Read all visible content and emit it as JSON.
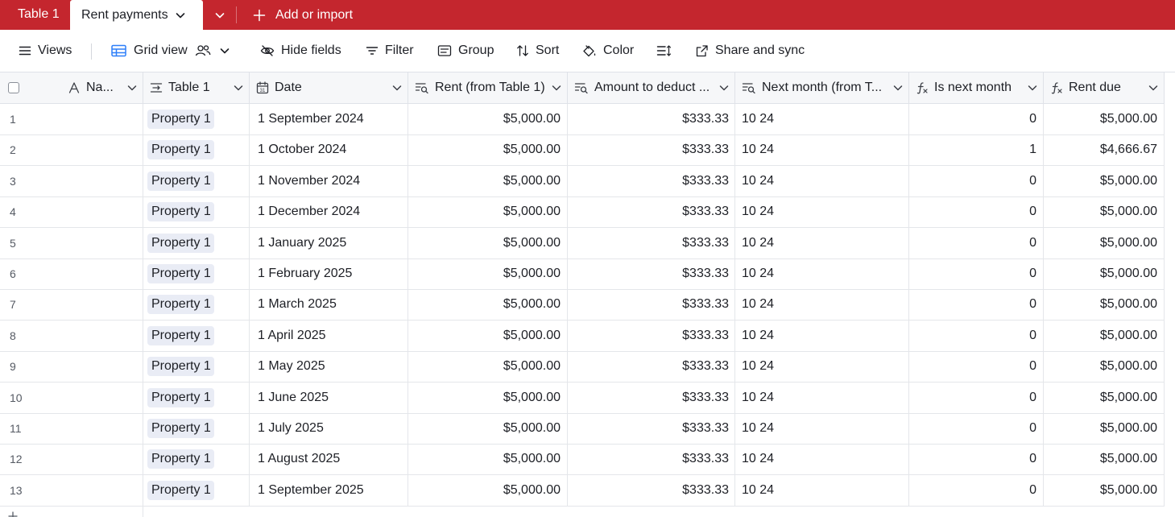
{
  "tabbar": {
    "tab_table1": "Table 1",
    "tab_active": "Rent payments",
    "add_import": "Add or import"
  },
  "toolbar": {
    "views": "Views",
    "grid_view": "Grid view",
    "hide_fields": "Hide fields",
    "filter": "Filter",
    "group": "Group",
    "sort": "Sort",
    "color": "Color",
    "share": "Share and sync"
  },
  "columns": {
    "name": "Na...",
    "table1": "Table 1",
    "date": "Date",
    "rent": "Rent (from Table 1)",
    "amount": "Amount to deduct ...",
    "next": "Next month (from T...",
    "isnext": "Is next month",
    "due": "Rent due"
  },
  "rows": [
    {
      "num": "1",
      "link": "Property 1",
      "date": "1 September 2024",
      "rent": "$5,000.00",
      "amount": "$333.33",
      "next": "10 24",
      "isnext": "0",
      "due": "$5,000.00"
    },
    {
      "num": "2",
      "link": "Property 1",
      "date": "1 October 2024",
      "rent": "$5,000.00",
      "amount": "$333.33",
      "next": "10 24",
      "isnext": "1",
      "due": "$4,666.67"
    },
    {
      "num": "3",
      "link": "Property 1",
      "date": "1 November 2024",
      "rent": "$5,000.00",
      "amount": "$333.33",
      "next": "10 24",
      "isnext": "0",
      "due": "$5,000.00"
    },
    {
      "num": "4",
      "link": "Property 1",
      "date": "1 December 2024",
      "rent": "$5,000.00",
      "amount": "$333.33",
      "next": "10 24",
      "isnext": "0",
      "due": "$5,000.00"
    },
    {
      "num": "5",
      "link": "Property 1",
      "date": "1 January 2025",
      "rent": "$5,000.00",
      "amount": "$333.33",
      "next": "10 24",
      "isnext": "0",
      "due": "$5,000.00"
    },
    {
      "num": "6",
      "link": "Property 1",
      "date": "1 February 2025",
      "rent": "$5,000.00",
      "amount": "$333.33",
      "next": "10 24",
      "isnext": "0",
      "due": "$5,000.00"
    },
    {
      "num": "7",
      "link": "Property 1",
      "date": "1 March 2025",
      "rent": "$5,000.00",
      "amount": "$333.33",
      "next": "10 24",
      "isnext": "0",
      "due": "$5,000.00"
    },
    {
      "num": "8",
      "link": "Property 1",
      "date": "1 April 2025",
      "rent": "$5,000.00",
      "amount": "$333.33",
      "next": "10 24",
      "isnext": "0",
      "due": "$5,000.00"
    },
    {
      "num": "9",
      "link": "Property 1",
      "date": "1 May 2025",
      "rent": "$5,000.00",
      "amount": "$333.33",
      "next": "10 24",
      "isnext": "0",
      "due": "$5,000.00"
    },
    {
      "num": "10",
      "link": "Property 1",
      "date": "1 June 2025",
      "rent": "$5,000.00",
      "amount": "$333.33",
      "next": "10 24",
      "isnext": "0",
      "due": "$5,000.00"
    },
    {
      "num": "11",
      "link": "Property 1",
      "date": "1 July 2025",
      "rent": "$5,000.00",
      "amount": "$333.33",
      "next": "10 24",
      "isnext": "0",
      "due": "$5,000.00"
    },
    {
      "num": "12",
      "link": "Property 1",
      "date": "1 August 2025",
      "rent": "$5,000.00",
      "amount": "$333.33",
      "next": "10 24",
      "isnext": "0",
      "due": "$5,000.00"
    },
    {
      "num": "13",
      "link": "Property 1",
      "date": "1 September 2025",
      "rent": "$5,000.00",
      "amount": "$333.33",
      "next": "10 24",
      "isnext": "0",
      "due": "$5,000.00"
    }
  ]
}
